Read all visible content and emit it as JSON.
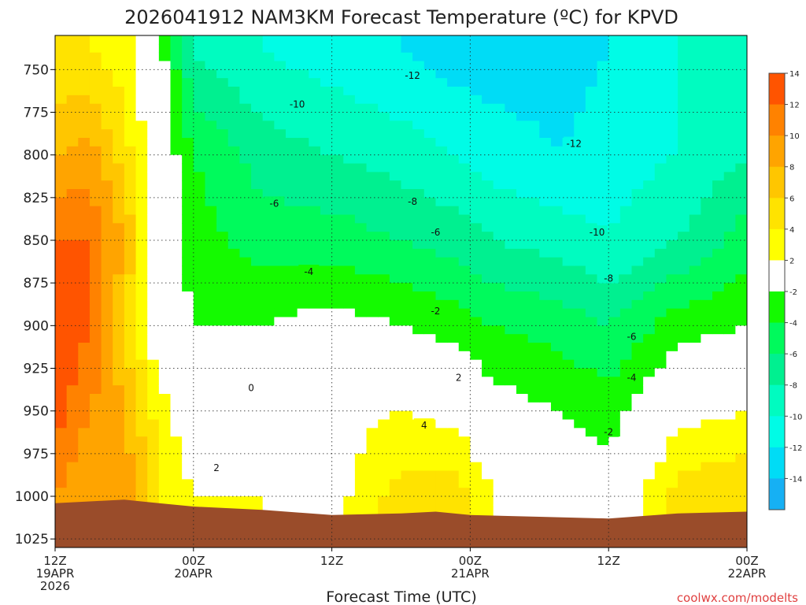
{
  "chart_data": {
    "type": "heatmap",
    "title": "2026041912 NAM3KM Forecast Temperature (ºC) for KPVD",
    "xlabel": "Forecast Time (UTC)",
    "ylabel": "",
    "ylim": [
      1030,
      730
    ],
    "xlim_hours": [
      0,
      60
    ],
    "y_ticks": [
      750,
      775,
      800,
      825,
      850,
      875,
      900,
      925,
      950,
      975,
      1000,
      1025
    ],
    "x_ticks": [
      {
        "hour": 0,
        "line1": "12Z",
        "line2": "19APR",
        "line3": "2026"
      },
      {
        "hour": 12,
        "line1": "00Z",
        "line2": "20APR",
        "line3": ""
      },
      {
        "hour": 24,
        "line1": "12Z",
        "line2": "",
        "line3": ""
      },
      {
        "hour": 36,
        "line1": "00Z",
        "line2": "21APR",
        "line3": ""
      },
      {
        "hour": 48,
        "line1": "12Z",
        "line2": "",
        "line3": ""
      },
      {
        "hour": 60,
        "line1": "00Z",
        "line2": "22APR",
        "line3": ""
      }
    ],
    "colorbar": {
      "levels": [
        -16,
        -14,
        -12,
        -10,
        -8,
        -6,
        -4,
        -2,
        2,
        4,
        6,
        8,
        10,
        12,
        14,
        16
      ],
      "labels": [
        "-14",
        "-12",
        "-10",
        "-8",
        "-6",
        "-4",
        "-2",
        "2",
        "4",
        "6",
        "8",
        "10",
        "12",
        "14"
      ],
      "colors": [
        "#16b0f4",
        "#00dcf6",
        "#00fce6",
        "#00fcc0",
        "#00f090",
        "#00fa5c",
        "#14fa00",
        "#ffffff",
        "#ffff00",
        "#ffe300",
        "#ffc600",
        "#ffa400",
        "#ff8200",
        "#ff5400"
      ]
    },
    "ground_color": "#9a4c2a",
    "surface_pressure": [
      {
        "hour": 0,
        "p": 1004
      },
      {
        "hour": 3,
        "p": 1003
      },
      {
        "hour": 6,
        "p": 1002
      },
      {
        "hour": 9,
        "p": 1004
      },
      {
        "hour": 12,
        "p": 1006
      },
      {
        "hour": 18,
        "p": 1008
      },
      {
        "hour": 24,
        "p": 1011
      },
      {
        "hour": 30,
        "p": 1010
      },
      {
        "hour": 33,
        "p": 1009
      },
      {
        "hour": 36,
        "p": 1011
      },
      {
        "hour": 42,
        "p": 1012
      },
      {
        "hour": 48,
        "p": 1013
      },
      {
        "hour": 54,
        "p": 1010
      },
      {
        "hour": 60,
        "p": 1009
      }
    ],
    "temperature_profiles": [
      {
        "hour": 0,
        "levels": [
          [
            740,
            4
          ],
          [
            800,
            8
          ],
          [
            850,
            12
          ],
          [
            900,
            14
          ],
          [
            950,
            13
          ],
          [
            1000,
            10
          ]
        ]
      },
      {
        "hour": 3,
        "levels": [
          [
            740,
            4
          ],
          [
            800,
            9
          ],
          [
            850,
            12
          ],
          [
            900,
            12
          ],
          [
            950,
            10
          ],
          [
            1000,
            8
          ]
        ]
      },
      {
        "hour": 6,
        "levels": [
          [
            740,
            3
          ],
          [
            800,
            5
          ],
          [
            850,
            8
          ],
          [
            900,
            6
          ],
          [
            950,
            8
          ],
          [
            1000,
            10
          ]
        ]
      },
      {
        "hour": 9,
        "levels": [
          [
            740,
            -1
          ],
          [
            800,
            0
          ],
          [
            850,
            0
          ],
          [
            900,
            0
          ],
          [
            950,
            3
          ],
          [
            1000,
            4
          ]
        ]
      },
      {
        "hour": 12,
        "levels": [
          [
            740,
            -8
          ],
          [
            800,
            -4
          ],
          [
            850,
            -3
          ],
          [
            900,
            -2
          ],
          [
            950,
            0
          ],
          [
            1000,
            2
          ]
        ]
      },
      {
        "hour": 18,
        "levels": [
          [
            740,
            -10
          ],
          [
            800,
            -7
          ],
          [
            850,
            -5
          ],
          [
            900,
            -2
          ],
          [
            950,
            0
          ],
          [
            1000,
            2
          ]
        ]
      },
      {
        "hour": 24,
        "levels": [
          [
            740,
            -11
          ],
          [
            800,
            -8
          ],
          [
            850,
            -5
          ],
          [
            900,
            -1
          ],
          [
            950,
            1
          ],
          [
            1000,
            1
          ]
        ]
      },
      {
        "hour": 30,
        "levels": [
          [
            740,
            -12
          ],
          [
            800,
            -9
          ],
          [
            850,
            -6
          ],
          [
            900,
            -2
          ],
          [
            950,
            2
          ],
          [
            1000,
            5
          ]
        ]
      },
      {
        "hour": 35,
        "levels": [
          [
            740,
            -13
          ],
          [
            800,
            -10
          ],
          [
            850,
            -7
          ],
          [
            900,
            -3
          ],
          [
            950,
            1
          ],
          [
            1000,
            5
          ]
        ]
      },
      {
        "hour": 38,
        "levels": [
          [
            740,
            -13
          ],
          [
            800,
            -11
          ],
          [
            850,
            -8
          ],
          [
            900,
            -4
          ],
          [
            950,
            -1
          ],
          [
            1000,
            2
          ]
        ]
      },
      {
        "hour": 44,
        "levels": [
          [
            740,
            -13
          ],
          [
            800,
            -12
          ],
          [
            850,
            -9
          ],
          [
            900,
            -5
          ],
          [
            950,
            -2
          ],
          [
            1000,
            0
          ]
        ]
      },
      {
        "hour": 48,
        "levels": [
          [
            740,
            -12
          ],
          [
            800,
            -11
          ],
          [
            850,
            -10
          ],
          [
            900,
            -6
          ],
          [
            950,
            -3
          ],
          [
            1000,
            -1
          ]
        ]
      },
      {
        "hour": 54,
        "levels": [
          [
            740,
            -10
          ],
          [
            800,
            -10
          ],
          [
            850,
            -8
          ],
          [
            900,
            -3
          ],
          [
            950,
            1
          ],
          [
            1000,
            5
          ]
        ]
      },
      {
        "hour": 60,
        "levels": [
          [
            740,
            -9
          ],
          [
            800,
            -8
          ],
          [
            850,
            -5
          ],
          [
            900,
            -2
          ],
          [
            950,
            2
          ],
          [
            1000,
            6
          ]
        ]
      }
    ],
    "annotations": [
      {
        "text": "-12",
        "hour": 31,
        "p": 753
      },
      {
        "text": "-10",
        "hour": 21,
        "p": 770
      },
      {
        "text": "-12",
        "hour": 45,
        "p": 793
      },
      {
        "text": "-6",
        "hour": 19,
        "p": 828
      },
      {
        "text": "-8",
        "hour": 31,
        "p": 827
      },
      {
        "text": "-6",
        "hour": 33,
        "p": 845
      },
      {
        "text": "-10",
        "hour": 47,
        "p": 845
      },
      {
        "text": "-4",
        "hour": 22,
        "p": 868
      },
      {
        "text": "-8",
        "hour": 48,
        "p": 872
      },
      {
        "text": "-2",
        "hour": 33,
        "p": 891
      },
      {
        "text": "-6",
        "hour": 50,
        "p": 906
      },
      {
        "text": "0",
        "hour": 17,
        "p": 936
      },
      {
        "text": "2",
        "hour": 35,
        "p": 930
      },
      {
        "text": "-4",
        "hour": 50,
        "p": 930
      },
      {
        "text": "4",
        "hour": 32,
        "p": 958
      },
      {
        "text": "2",
        "hour": 14,
        "p": 983
      },
      {
        "text": "-2",
        "hour": 48,
        "p": 962
      }
    ],
    "credit": "coolwx.com/modelts",
    "credit_color": "#e04040"
  }
}
